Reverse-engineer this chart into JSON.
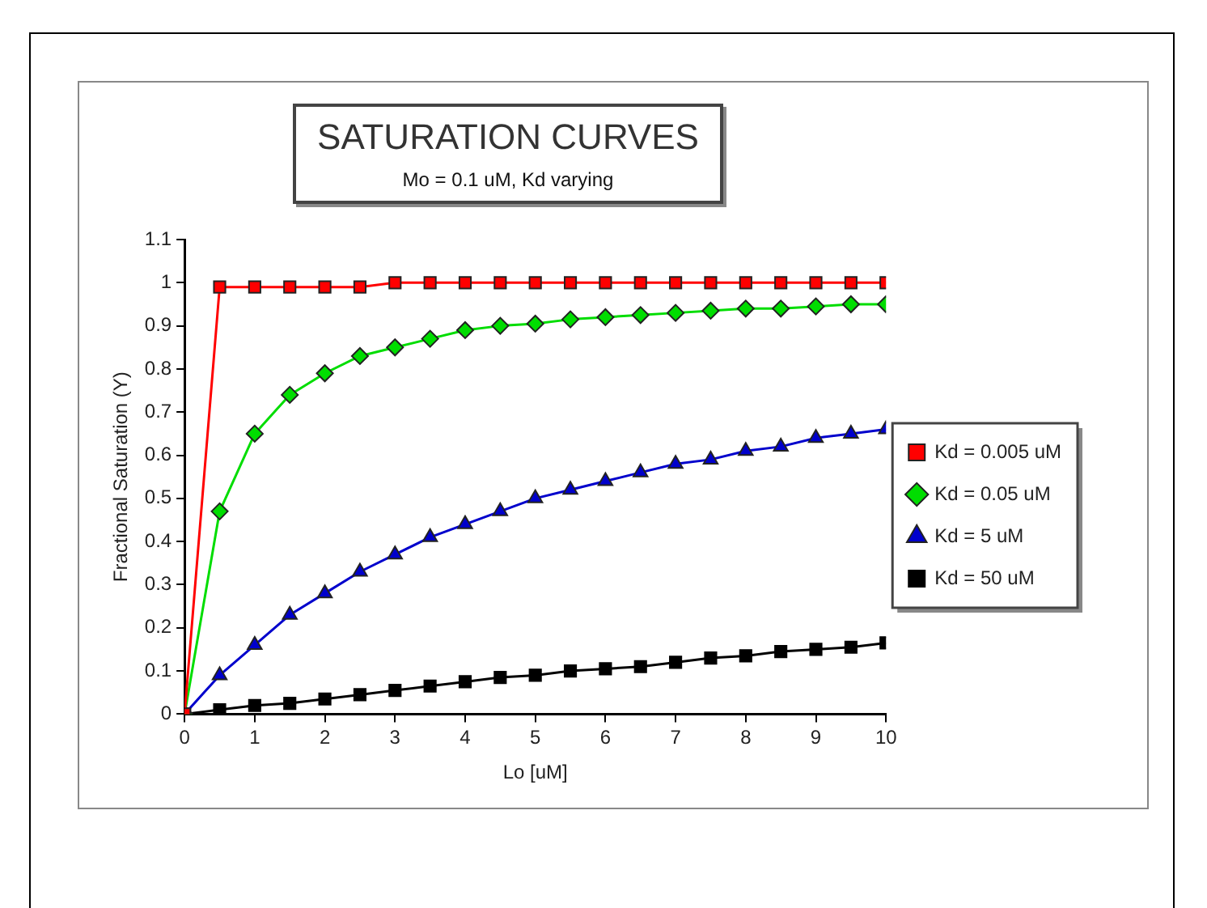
{
  "chart_data": {
    "type": "line",
    "title": "SATURATION CURVES",
    "subtitle": "Mo = 0.1 uM, Kd varying",
    "xlabel": "Lo [uM]",
    "ylabel": "Fractional Saturation (Y)",
    "x": [
      0,
      0.5,
      1,
      1.5,
      2,
      2.5,
      3,
      3.5,
      4,
      4.5,
      5,
      5.5,
      6,
      6.5,
      7,
      7.5,
      8,
      8.5,
      9,
      9.5,
      10
    ],
    "series": [
      {
        "name": "Kd = 0.005 uM",
        "color": "#ff0000",
        "marker": "square",
        "values": [
          0,
          0.99,
          0.99,
          0.99,
          0.99,
          0.99,
          1,
          1,
          1,
          1,
          1,
          1,
          1,
          1,
          1,
          1,
          1,
          1,
          1,
          1,
          1
        ]
      },
      {
        "name": "Kd = 0.05 uM",
        "color": "#00dd00",
        "marker": "diamond",
        "values": [
          0,
          0.47,
          0.65,
          0.74,
          0.79,
          0.83,
          0.85,
          0.87,
          0.89,
          0.9,
          0.905,
          0.915,
          0.92,
          0.925,
          0.93,
          0.935,
          0.94,
          0.94,
          0.945,
          0.95,
          0.95
        ]
      },
      {
        "name": "Kd = 5 uM",
        "color": "#0000cc",
        "marker": "triangle",
        "values": [
          0,
          0.09,
          0.16,
          0.23,
          0.28,
          0.33,
          0.37,
          0.41,
          0.44,
          0.47,
          0.5,
          0.52,
          0.54,
          0.56,
          0.58,
          0.59,
          0.61,
          0.62,
          0.64,
          0.65,
          0.66
        ]
      },
      {
        "name": "Kd = 50 uM",
        "color": "#000000",
        "marker": "square",
        "values": [
          0,
          0.01,
          0.02,
          0.025,
          0.035,
          0.045,
          0.055,
          0.065,
          0.075,
          0.085,
          0.09,
          0.1,
          0.105,
          0.11,
          0.12,
          0.13,
          0.135,
          0.145,
          0.15,
          0.155,
          0.165
        ]
      }
    ],
    "xlim": [
      0,
      10
    ],
    "xticks": [
      0,
      1,
      2,
      3,
      4,
      5,
      6,
      7,
      8,
      9,
      10
    ],
    "ylim": [
      0,
      1.1
    ],
    "yticks": [
      0,
      0.1,
      0.2,
      0.3,
      0.4,
      0.5,
      0.6,
      0.7,
      0.8,
      0.9,
      1,
      1.1
    ],
    "grid": false,
    "legend": "right",
    "line_style": "solid"
  }
}
